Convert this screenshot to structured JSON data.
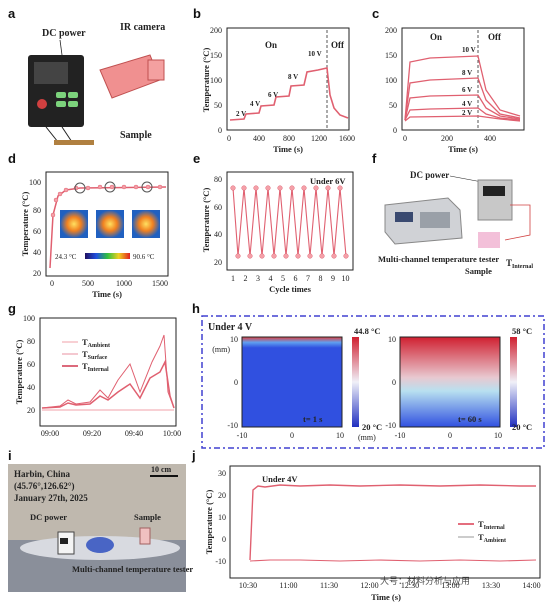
{
  "panels": {
    "a": {
      "label": "a",
      "dc_power": "DC power",
      "ir_camera": "IR camera",
      "sample": "Sample"
    },
    "b": {
      "label": "b",
      "ylabel": "Temperature (°C)",
      "xlabel": "Time (s)",
      "on": "On",
      "off": "Off",
      "yticks": [
        "0",
        "50",
        "100",
        "150",
        "200"
      ],
      "xticks": [
        "0",
        "400",
        "800",
        "1200",
        "1600"
      ],
      "steps": [
        "2 V",
        "4 V",
        "6 V",
        "8 V",
        "10 V"
      ]
    },
    "c": {
      "label": "c",
      "on": "On",
      "off": "Off",
      "xlabel": "Time (s)",
      "yticks": [
        "0",
        "50",
        "100",
        "150",
        "200"
      ],
      "xticks": [
        "0",
        "200",
        "400"
      ],
      "curves": [
        "10 V",
        "8 V",
        "6 V",
        "4 V",
        "2 V"
      ]
    },
    "d": {
      "label": "d",
      "ylabel": "Temperature (°C)",
      "xlabel": "Time (s)",
      "yticks": [
        "20",
        "40",
        "60",
        "80",
        "100"
      ],
      "xticks": [
        "0",
        "500",
        "1000",
        "1500"
      ],
      "cmin": "24.3 °C",
      "cmax": "90.6 °C"
    },
    "e": {
      "label": "e",
      "ylabel": "Temperature (°C)",
      "xlabel": "Cycle times",
      "note": "Under 6V",
      "yticks": [
        "20",
        "40",
        "60",
        "80"
      ],
      "xticks": [
        "1",
        "2",
        "3",
        "4",
        "5",
        "6",
        "7",
        "8",
        "9",
        "10"
      ]
    },
    "f": {
      "label": "f",
      "dc_power": "DC power",
      "tester": "Multi-channel temperature tester",
      "sample": "Sample",
      "internal": "T",
      "internal_sub": "Internal"
    },
    "g": {
      "label": "g",
      "ylabel": "Temperature (°C)",
      "yticks": [
        "20",
        "40",
        "60",
        "80",
        "100"
      ],
      "xticks": [
        "09:00",
        "09:20",
        "09:40",
        "10:00"
      ],
      "legend": [
        {
          "t": "T",
          "s": "Ambient"
        },
        {
          "t": "T",
          "s": "Surface"
        },
        {
          "t": "T",
          "s": "Internal"
        }
      ]
    },
    "h": {
      "label": "h",
      "title": "Under 4 V",
      "left_max": "44.8 °C",
      "left_min": "20 °C",
      "right_max": "58 °C",
      "right_min": "20 °C",
      "t1": "t= 1 s",
      "t2": "t= 60 s",
      "mm": "(mm)",
      "yticks": [
        "10",
        "0",
        "-10"
      ],
      "xticks": [
        "-10",
        "0",
        "10"
      ]
    },
    "i": {
      "label": "i",
      "loc1": "Harbin, China",
      "loc2": "(45.76°,126.62°)",
      "date": "January 27th, 2025",
      "scale": "10 cm",
      "dc": "DC power",
      "sample": "Sample",
      "tester": "Multi-channel temperature tester"
    },
    "j": {
      "label": "j",
      "ylabel": "Temperature (°C)",
      "xlabel": "Time (s)",
      "note": "Under 4V",
      "yticks": [
        "30",
        "20",
        "10",
        "0",
        "-10"
      ],
      "xticks": [
        "10:30",
        "11:00",
        "11:30",
        "12:00",
        "12:30",
        "13:00",
        "13:30",
        "14:00"
      ],
      "legend": [
        {
          "t": "T",
          "s": "Internal"
        },
        {
          "t": "T",
          "s": "Ambient"
        }
      ]
    }
  },
  "watermark": "大号：材料分析与应用"
}
